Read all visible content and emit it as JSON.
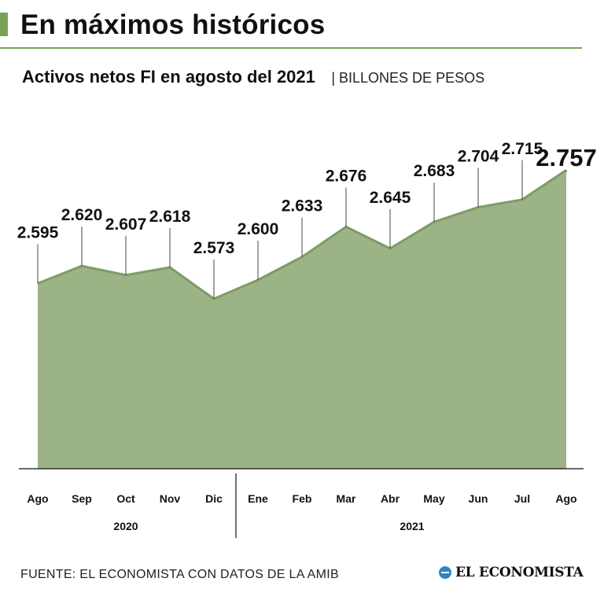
{
  "header": {
    "title": "En máximos históricos",
    "accent_color": "#7aa35a"
  },
  "chart_data": {
    "type": "area",
    "title": "Activos netos FI en agosto del 2021",
    "unit_label": "| BILLONES DE PESOS",
    "categories": [
      "Ago",
      "Sep",
      "Oct",
      "Nov",
      "Dic",
      "Ene",
      "Feb",
      "Mar",
      "Abr",
      "May",
      "Jun",
      "Jul",
      "Ago"
    ],
    "value_labels": [
      "2.595",
      "2.620",
      "2.607",
      "2.618",
      "2.573",
      "2.600",
      "2.633",
      "2.676",
      "2.645",
      "2.683",
      "2.704",
      "2.715",
      "2.757"
    ],
    "values": [
      2.595,
      2.62,
      2.607,
      2.618,
      2.573,
      2.6,
      2.633,
      2.676,
      2.645,
      2.683,
      2.704,
      2.715,
      2.757
    ],
    "highlight_index": 12,
    "year_groups": [
      {
        "label": "2020",
        "start": 0,
        "end": 4
      },
      {
        "label": "2021",
        "start": 5,
        "end": 12
      }
    ],
    "xlabel": "",
    "ylabel": "",
    "ylim": [
      2.33,
      2.78
    ],
    "grid": false,
    "legend": "none",
    "fill_color": "#9cb386",
    "line_color": "#7e9c65"
  },
  "footer": {
    "source": "FUENTE: EL ECONOMISTA CON DATOS DE LA AMIB",
    "logo_text": "EL ECONOMISTA",
    "logo_color": "#2e86c1"
  }
}
